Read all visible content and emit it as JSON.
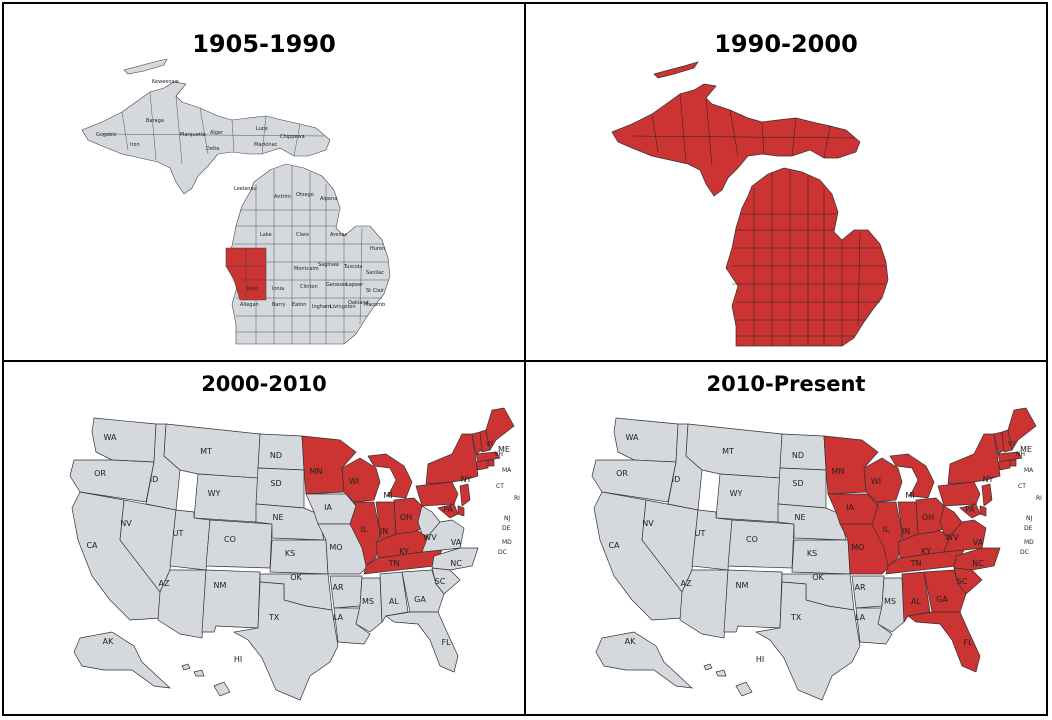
{
  "colors": {
    "highlight": "#cc3333",
    "base": "#d5d9dd",
    "border": "#333333"
  },
  "panels": [
    {
      "title": "1905-1990"
    },
    {
      "title": "1990-2000"
    },
    {
      "title": "2000-2010"
    },
    {
      "title": "2010-Present"
    }
  ],
  "michigan_labels": [
    "Keweenaw",
    "Gogebic",
    "Iron",
    "Baraga",
    "Marquette",
    "Alger",
    "Luce",
    "Chippewa",
    "Delta",
    "Mackinac",
    "Leelanau",
    "Antrim",
    "Otsego",
    "Alpena",
    "Lake",
    "Clare",
    "Arenac",
    "Huron",
    "Montcalm",
    "Saginaw",
    "Tuscola",
    "Sanilac",
    "Kent",
    "Ionia",
    "Clinton",
    "Genesee",
    "Lapeer",
    "St Clair",
    "Allegan",
    "Barry",
    "Eaton",
    "Ingham",
    "Livingston",
    "Oakland",
    "Macomb"
  ],
  "michigan_highlighted_1905_1990": [
    "Newaygo",
    "Muskegon",
    "Kent"
  ],
  "us_labels": [
    "WA",
    "OR",
    "CA",
    "ID",
    "NV",
    "MT",
    "WY",
    "UT",
    "AZ",
    "CO",
    "NM",
    "ND",
    "SD",
    "NE",
    "KS",
    "OK",
    "TX",
    "MN",
    "IA",
    "MO",
    "AR",
    "LA",
    "WI",
    "IL",
    "MS",
    "MI",
    "IN",
    "KY",
    "TN",
    "AL",
    "OH",
    "WV",
    "VA",
    "NC",
    "SC",
    "GA",
    "FL",
    "PA",
    "NY",
    "VT",
    "NH",
    "ME",
    "MA",
    "RI",
    "CT",
    "NJ",
    "DE",
    "MD",
    "DC",
    "AK",
    "HI"
  ],
  "us_highlighted_2000_2010": [
    "MN",
    "WI",
    "MI",
    "IL",
    "IN",
    "OH",
    "KY",
    "TN",
    "PA",
    "NY",
    "VT",
    "NH",
    "ME",
    "MA",
    "CT",
    "RI",
    "NJ",
    "DE",
    "MD"
  ],
  "us_highlighted_2010_present": [
    "MN",
    "WI",
    "MI",
    "IA",
    "MO",
    "IL",
    "IN",
    "OH",
    "KY",
    "TN",
    "WV",
    "VA",
    "NC",
    "SC",
    "GA",
    "AL",
    "FL",
    "PA",
    "NY",
    "VT",
    "NH",
    "ME",
    "MA",
    "CT",
    "RI",
    "NJ",
    "DE",
    "MD"
  ]
}
